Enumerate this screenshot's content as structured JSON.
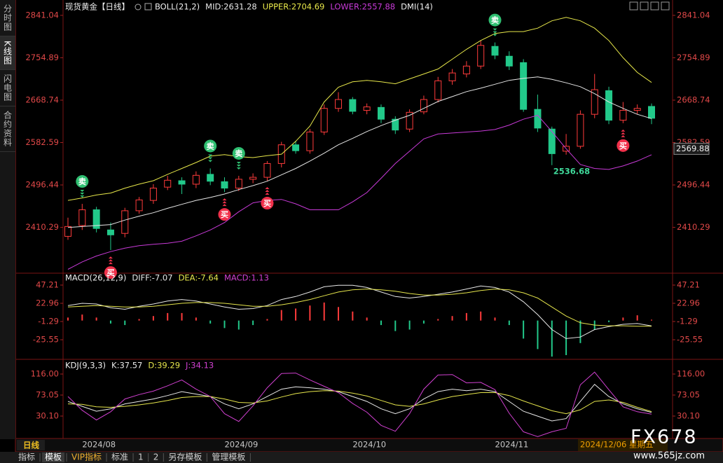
{
  "sidebar": [
    "分时图",
    "K线图",
    "闪电图",
    "合约资料"
  ],
  "chart_data": [
    {
      "type": "candlestick",
      "title": "现货黄金【日线】",
      "indicator": "BOLL(21,2)",
      "extra_indicator": "DMI(14)",
      "categories": [
        null,
        "2024/08",
        null,
        null,
        null,
        null,
        null,
        null,
        null,
        null,
        null,
        "2024/09",
        null,
        null,
        null,
        null,
        null,
        null,
        null,
        null,
        "2024/10",
        null,
        null,
        null,
        null,
        null,
        null,
        null,
        null,
        null,
        "2024/11",
        null,
        null,
        null,
        null,
        null,
        null,
        null,
        null,
        null,
        null,
        null
      ],
      "open": [
        2392,
        2414,
        2446,
        2405,
        2398,
        2444,
        2465,
        2492,
        2505,
        2498,
        2518,
        2503,
        2490,
        2508,
        2512,
        2540,
        2578,
        2566,
        2604,
        2652,
        2670,
        2648,
        2654,
        2630,
        2610,
        2645,
        2670,
        2708,
        2722,
        2738,
        2778,
        2758,
        2745,
        2650,
        2610,
        2565,
        2575,
        2640,
        2688,
        2628,
        2648,
        2656
      ],
      "high": [
        2430,
        2458,
        2452,
        2420,
        2450,
        2472,
        2498,
        2515,
        2512,
        2524,
        2530,
        2512,
        2515,
        2520,
        2545,
        2584,
        2586,
        2610,
        2660,
        2685,
        2675,
        2662,
        2660,
        2636,
        2650,
        2678,
        2716,
        2732,
        2748,
        2790,
        2786,
        2768,
        2752,
        2680,
        2615,
        2600,
        2648,
        2722,
        2696,
        2665,
        2660,
        2662
      ],
      "low": [
        2385,
        2405,
        2400,
        2364,
        2390,
        2438,
        2458,
        2486,
        2478,
        2490,
        2496,
        2482,
        2484,
        2500,
        2505,
        2532,
        2560,
        2560,
        2598,
        2645,
        2640,
        2640,
        2622,
        2600,
        2604,
        2640,
        2664,
        2700,
        2715,
        2732,
        2752,
        2730,
        2645,
        2604,
        2536.68,
        2558,
        2570,
        2632,
        2620,
        2622,
        2640,
        2620
      ],
      "close": [
        2412,
        2446,
        2408,
        2395,
        2444,
        2466,
        2490,
        2506,
        2498,
        2516,
        2504,
        2490,
        2508,
        2512,
        2540,
        2578,
        2566,
        2604,
        2652,
        2670,
        2646,
        2655,
        2630,
        2608,
        2644,
        2670,
        2708,
        2724,
        2738,
        2780,
        2760,
        2738,
        2650,
        2612,
        2560,
        2575,
        2640,
        2690,
        2628,
        2648,
        2652,
        2632
      ],
      "up_color": "#ff3b3b",
      "down_color": "#22c98a",
      "series": [
        {
          "name": "MID:2631.28",
          "color": "#e6e6e6",
          "kind": "line",
          "values": [
            2410,
            2412,
            2414,
            2416,
            2425,
            2433,
            2440,
            2449,
            2457,
            2465,
            2471,
            2478,
            2487,
            2495,
            2504,
            2517,
            2530,
            2545,
            2561,
            2578,
            2591,
            2605,
            2617,
            2628,
            2638,
            2652,
            2666,
            2676,
            2686,
            2693,
            2701,
            2709,
            2713,
            2716,
            2711,
            2704,
            2696,
            2682,
            2665,
            2652,
            2640,
            2631.28
          ]
        },
        {
          "name": "UPPER:2704.69",
          "color": "#e8e84a",
          "kind": "line",
          "values": [
            2465,
            2470,
            2476,
            2480,
            2490,
            2498,
            2505,
            2518,
            2530,
            2542,
            2555,
            2558,
            2554,
            2552,
            2556,
            2559,
            2585,
            2616,
            2665,
            2695,
            2706,
            2709,
            2706,
            2702,
            2712,
            2722,
            2732,
            2752,
            2772,
            2790,
            2804,
            2808,
            2808,
            2815,
            2830,
            2837,
            2830,
            2815,
            2790,
            2755,
            2725,
            2704.69
          ]
        },
        {
          "name": "LOWER:2557.88",
          "color": "#c83ad8",
          "kind": "line",
          "values": [
            2325,
            2340,
            2352,
            2361,
            2368,
            2373,
            2376,
            2378,
            2382,
            2393,
            2405,
            2420,
            2442,
            2460,
            2465,
            2467,
            2458,
            2446,
            2446,
            2446,
            2462,
            2481,
            2510,
            2540,
            2565,
            2590,
            2600,
            2602,
            2604,
            2606,
            2609,
            2618,
            2630,
            2638,
            2605,
            2570,
            2538,
            2530,
            2528,
            2535,
            2545,
            2557.88
          ]
        }
      ],
      "ylim": [
        2320,
        2858
      ],
      "yticks": [
        2841.04,
        2754.89,
        2668.74,
        2582.59,
        2496.44,
        2410.29
      ],
      "signals": [
        {
          "label": "卖",
          "color": "#2fbf71",
          "side": "sell",
          "at": [
            1,
            10,
            12,
            30
          ]
        },
        {
          "label": "买",
          "color": "#f0304a",
          "side": "buy",
          "at": [
            3,
            11,
            14,
            39
          ]
        }
      ],
      "annotations": [
        {
          "label": "2536.68",
          "at": 34
        }
      ],
      "cursor_price": 2569.88,
      "cursor_date": "2024/12/06 星期五"
    },
    {
      "type": "combo",
      "title": "MACD(26,12,9)",
      "series": [
        {
          "name": "DIFF:-7.07",
          "color": "#e8e8e8",
          "kind": "line",
          "values": [
            20,
            23,
            22,
            17,
            15,
            19,
            22,
            26,
            28,
            26,
            22,
            18,
            15,
            16,
            20,
            28,
            32,
            38,
            45,
            47,
            47,
            44,
            38,
            32,
            30,
            32,
            35,
            38,
            42,
            46,
            44,
            38,
            25,
            8,
            -12,
            -24,
            -22,
            -12,
            -8,
            -5,
            -4,
            -7.07
          ]
        },
        {
          "name": "DEA:-7.64",
          "color": "#e6e64c",
          "kind": "line",
          "values": [
            18,
            19,
            20,
            19,
            18,
            18,
            19,
            21,
            23,
            24,
            24,
            23,
            21,
            19,
            19,
            21,
            24,
            28,
            33,
            38,
            41,
            42,
            41,
            39,
            36,
            34,
            34,
            35,
            37,
            40,
            42,
            41,
            37,
            30,
            18,
            6,
            -3,
            -6,
            -7,
            -7,
            -7.5,
            -7.64
          ]
        },
        {
          "name": "MACD:1.13",
          "color": "#d040d0",
          "kind": "bar",
          "up_color": "#ff3b3b",
          "down_color": "#22c98a",
          "values": [
            4,
            8,
            4,
            -4,
            -6,
            2,
            6,
            10,
            10,
            4,
            -4,
            -10,
            -12,
            -6,
            2,
            14,
            16,
            20,
            24,
            18,
            12,
            4,
            -6,
            -14,
            -12,
            -4,
            2,
            6,
            10,
            12,
            4,
            -6,
            -24,
            -38,
            -48,
            -46,
            -30,
            -12,
            -2,
            4,
            7,
            1.13
          ]
        }
      ],
      "ylim": [
        -50.7,
        61.2
      ],
      "yticks": [
        47.21,
        22.96,
        -1.29,
        -25.55
      ]
    },
    {
      "type": "line",
      "title": "KDJ(9,3,3)",
      "series": [
        {
          "name": "K:37.57",
          "color": "#e8e8e8",
          "kind": "line",
          "values": [
            60,
            50,
            40,
            45,
            55,
            60,
            65,
            72,
            80,
            75,
            70,
            55,
            45,
            55,
            70,
            85,
            90,
            88,
            85,
            80,
            70,
            60,
            45,
            35,
            45,
            65,
            80,
            85,
            82,
            85,
            80,
            60,
            40,
            30,
            20,
            25,
            60,
            95,
            70,
            55,
            45,
            37.57
          ]
        },
        {
          "name": "D:39.29",
          "color": "#e6e64c",
          "kind": "line",
          "values": [
            55,
            54,
            49,
            48,
            50,
            53,
            57,
            62,
            68,
            70,
            70,
            65,
            58,
            57,
            61,
            69,
            76,
            80,
            82,
            81,
            77,
            71,
            62,
            53,
            50,
            55,
            63,
            70,
            74,
            78,
            78,
            72,
            61,
            51,
            41,
            35,
            43,
            60,
            63,
            58,
            48,
            39.29
          ]
        },
        {
          "name": "J:34.13",
          "color": "#d040d0",
          "kind": "line",
          "values": [
            70,
            42,
            22,
            39,
            65,
            74,
            81,
            92,
            104,
            85,
            70,
            35,
            19,
            51,
            88,
            117,
            118,
            104,
            91,
            78,
            56,
            38,
            11,
            -1,
            35,
            85,
            114,
            115,
            98,
            99,
            84,
            36,
            -2,
            -12,
            -2,
            5,
            94,
            120,
            84,
            49,
            39,
            34.13
          ]
        }
      ],
      "ylim": [
        -14.3,
        143.2
      ],
      "yticks": [
        {
          "value": 116,
          "label": "116.00"
        },
        73.05,
        {
          "value": 30.1,
          "label": "30.10"
        }
      ]
    }
  ],
  "period": "日线",
  "toolbar": [
    "指标",
    "模板",
    "VIP指标",
    "标准",
    "1",
    "2",
    "另存模板",
    "管理模板"
  ],
  "watermark": {
    "logo": "FX678",
    "site": "www.565jz.com"
  }
}
